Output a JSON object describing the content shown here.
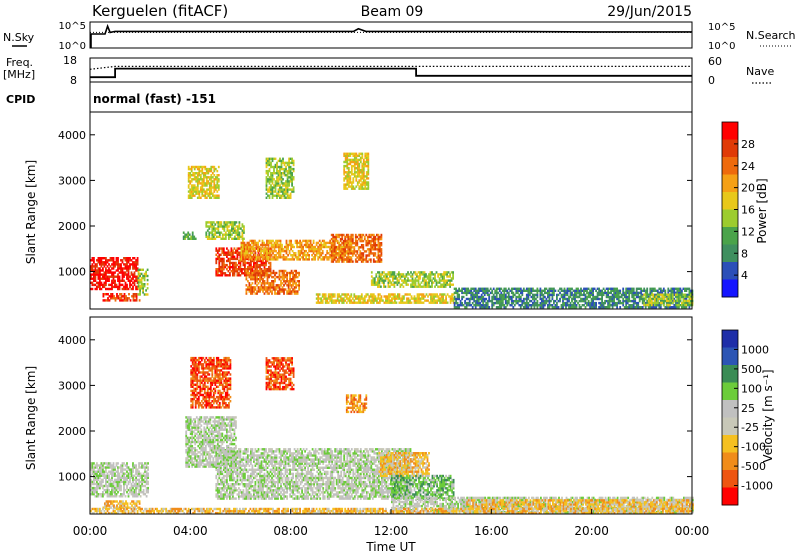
{
  "header": {
    "station": "Kerguelen (fitACF)",
    "beam": "Beam 09",
    "date": "29/Jun/2015"
  },
  "noise_panel": {
    "left_label": "N.Sky",
    "right_label": "N.Search",
    "left_ticks": [
      "10^5",
      "10^0"
    ],
    "right_ticks": [
      "10^5",
      "10^0"
    ]
  },
  "freq_panel": {
    "left_label": "Freq.",
    "left_unit": "[MHz]",
    "right_label": "Nave",
    "left_ticks": [
      "18",
      "8"
    ],
    "right_ticks": [
      "60",
      "0"
    ]
  },
  "cpid_panel": {
    "label": "CPID",
    "mode_text": "normal (fast) -151"
  },
  "colors": {
    "power_scale": [
      "#1515ff",
      "#2b4fb8",
      "#3f8f5f",
      "#4aa34a",
      "#9ccc2e",
      "#e8c81a",
      "#f5a015",
      "#ee6a0c",
      "#e03a06",
      "#ff0000"
    ],
    "velocity_scale": [
      "#ff0000",
      "#ee5511",
      "#f08c1a",
      "#f5c020",
      "#c8c8b8",
      "#c0c0c0",
      "#6ccc3a",
      "#3a8c55",
      "#2c55b4",
      "#1e2ea8"
    ]
  },
  "chart_data": [
    {
      "type": "line",
      "name": "noise",
      "series": [
        {
          "name": "N.Sky",
          "style": "solid"
        },
        {
          "name": "N.Search",
          "style": "dotted"
        }
      ],
      "x": [
        0,
        0.6,
        0.7,
        0.8,
        1,
        4,
        8,
        10.5,
        10.7,
        11,
        12,
        16,
        20,
        24
      ],
      "sky": [
        2.7,
        2.7,
        4.2,
        3.0,
        3.2,
        3.2,
        3.2,
        3.2,
        3.7,
        3.2,
        3.2,
        3.2,
        3.1,
        3.1
      ],
      "ylim": [
        0,
        5
      ],
      "xlim": [
        0,
        24
      ]
    },
    {
      "type": "line",
      "name": "frequency",
      "xlabel": "",
      "series": [
        {
          "name": "Freq.",
          "style": "solid",
          "x": [
            0,
            1,
            1,
            13,
            13,
            24
          ],
          "y": [
            10,
            10,
            13.6,
            13.6,
            10.6,
            10.6
          ]
        },
        {
          "name": "Nave",
          "style": "dotted",
          "x": [
            0,
            1,
            24
          ],
          "y": [
            13.3,
            14.5,
            14.5
          ]
        }
      ],
      "ylim": [
        8,
        18
      ],
      "xlim": [
        0,
        24
      ]
    },
    {
      "type": "heatmap",
      "name": "power",
      "ylabel": "Slant Range [km]",
      "colorbar_label": "Power [dB]",
      "colorbar_ticks": [
        "28",
        "24",
        "20",
        "16",
        "12",
        "8",
        "4"
      ],
      "ylim": [
        180,
        4500
      ],
      "y_ticks": [
        "4000",
        "3000",
        "2000",
        "1000"
      ],
      "y_tick_values": [
        4000,
        3000,
        2000,
        1000
      ],
      "regions": [
        {
          "t0": 0.0,
          "t1": 1.9,
          "r0": 600,
          "r1": 1300,
          "level": 9
        },
        {
          "t0": 0.5,
          "t1": 2.0,
          "r0": 350,
          "r1": 500,
          "level": 8
        },
        {
          "t0": 1.9,
          "t1": 2.3,
          "r0": 480,
          "r1": 1050,
          "level": 4
        },
        {
          "t0": 3.7,
          "t1": 4.2,
          "r0": 1700,
          "r1": 1850,
          "level": 3
        },
        {
          "t0": 3.9,
          "t1": 5.1,
          "r0": 2600,
          "r1": 3300,
          "level": 5
        },
        {
          "t0": 4.6,
          "t1": 6.1,
          "r0": 1700,
          "r1": 2100,
          "level": 4
        },
        {
          "t0": 5.0,
          "t1": 7.2,
          "r0": 900,
          "r1": 1500,
          "level": 8
        },
        {
          "t0": 6.0,
          "t1": 10.4,
          "r0": 1250,
          "r1": 1700,
          "level": 6
        },
        {
          "t0": 6.2,
          "t1": 8.3,
          "r0": 500,
          "r1": 1000,
          "level": 7
        },
        {
          "t0": 7.0,
          "t1": 8.1,
          "r0": 2600,
          "r1": 3500,
          "level": 4
        },
        {
          "t0": 9.6,
          "t1": 11.6,
          "r0": 1200,
          "r1": 1800,
          "level": 7
        },
        {
          "t0": 10.1,
          "t1": 11.1,
          "r0": 2800,
          "r1": 3600,
          "level": 5
        },
        {
          "t0": 11.2,
          "t1": 14.5,
          "r0": 650,
          "r1": 1000,
          "level": 4
        },
        {
          "t0": 9.0,
          "t1": 14.5,
          "r0": 300,
          "r1": 520,
          "level": 5
        },
        {
          "t0": 14.5,
          "t1": 24.0,
          "r0": 200,
          "r1": 650,
          "level": 2
        },
        {
          "t0": 22.0,
          "t1": 24.0,
          "r0": 250,
          "r1": 520,
          "level": 4
        }
      ]
    },
    {
      "type": "heatmap",
      "name": "velocity",
      "xlabel": "Time UT",
      "ylabel": "Slant Range [km]",
      "colorbar_label": "Velocity [m s⁻¹]",
      "colorbar_ticks": [
        "1000",
        "500",
        "100",
        "25",
        "-25",
        "-100",
        "-500",
        "-1000"
      ],
      "ylim": [
        180,
        4500
      ],
      "y_ticks": [
        "4000",
        "3000",
        "2000",
        "1000"
      ],
      "y_tick_values": [
        4000,
        3000,
        2000,
        1000
      ],
      "x_ticks": [
        "00:00",
        "04:00",
        "08:00",
        "12:00",
        "16:00",
        "20:00",
        "00:00"
      ],
      "x_tick_values": [
        0,
        4,
        8,
        12,
        16,
        20,
        24
      ],
      "regions": [
        {
          "t0": 0.0,
          "t1": 2.3,
          "r0": 550,
          "r1": 1300,
          "level": 5
        },
        {
          "t0": 0.5,
          "t1": 2.0,
          "r0": 300,
          "r1": 480,
          "level": 3
        },
        {
          "t0": 3.8,
          "t1": 5.8,
          "r0": 1200,
          "r1": 2300,
          "level": 5
        },
        {
          "t0": 4.0,
          "t1": 5.6,
          "r0": 2500,
          "r1": 3600,
          "level": 1
        },
        {
          "t0": 5.0,
          "t1": 12.8,
          "r0": 500,
          "r1": 1600,
          "level": 5
        },
        {
          "t0": 7.0,
          "t1": 8.1,
          "r0": 2900,
          "r1": 3600,
          "level": 1
        },
        {
          "t0": 10.2,
          "t1": 11.0,
          "r0": 2400,
          "r1": 2800,
          "level": 2
        },
        {
          "t0": 11.5,
          "t1": 13.5,
          "r0": 1000,
          "r1": 1500,
          "level": 3
        },
        {
          "t0": 12.0,
          "t1": 14.5,
          "r0": 500,
          "r1": 1000,
          "level": 6
        },
        {
          "t0": 12.0,
          "t1": 24.0,
          "r0": 200,
          "r1": 560,
          "level": 5
        },
        {
          "t0": 15.0,
          "t1": 24.0,
          "r0": 280,
          "r1": 480,
          "level": 3
        },
        {
          "t0": 0.0,
          "t1": 24.0,
          "r0": 180,
          "r1": 300,
          "level": 3
        }
      ]
    }
  ]
}
